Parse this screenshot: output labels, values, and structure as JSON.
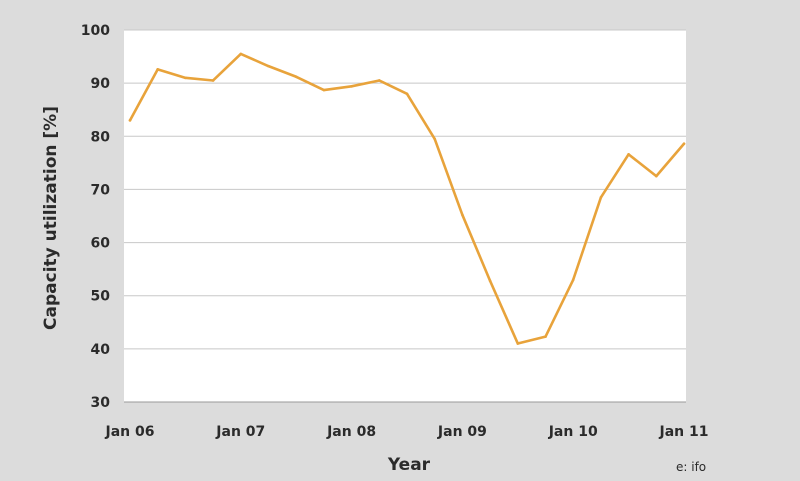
{
  "chart_data": {
    "type": "line",
    "title": "",
    "xlabel": "Year",
    "ylabel": "Capacity utilization [%]",
    "ylim": [
      30,
      100
    ],
    "yticks": [
      30,
      40,
      50,
      60,
      70,
      80,
      90,
      100
    ],
    "xticks": [
      {
        "x": 0,
        "label": "Jan 06"
      },
      {
        "x": 4,
        "label": "Jan 07"
      },
      {
        "x": 8,
        "label": "Jan 08"
      },
      {
        "x": 12,
        "label": "Jan 09"
      },
      {
        "x": 16,
        "label": "Jan 10"
      },
      {
        "x": 20,
        "label": "Jan 11"
      }
    ],
    "xlim": [
      0,
      20
    ],
    "grid": true,
    "series": [
      {
        "color": "#e8a33b",
        "x": [
          0,
          1,
          2,
          3,
          4,
          5,
          6,
          7,
          8,
          9,
          10,
          11,
          12,
          13,
          14,
          15,
          16,
          17,
          18,
          19,
          20
        ],
        "values": [
          83,
          92.6,
          91,
          90.5,
          95.5,
          93.2,
          91.2,
          88.7,
          89.4,
          90.5,
          88,
          79.5,
          65.2,
          52.8,
          41,
          42.3,
          53,
          68.5,
          76.6,
          72.5,
          78.6
        ]
      }
    ]
  },
  "source": "e: ifo"
}
